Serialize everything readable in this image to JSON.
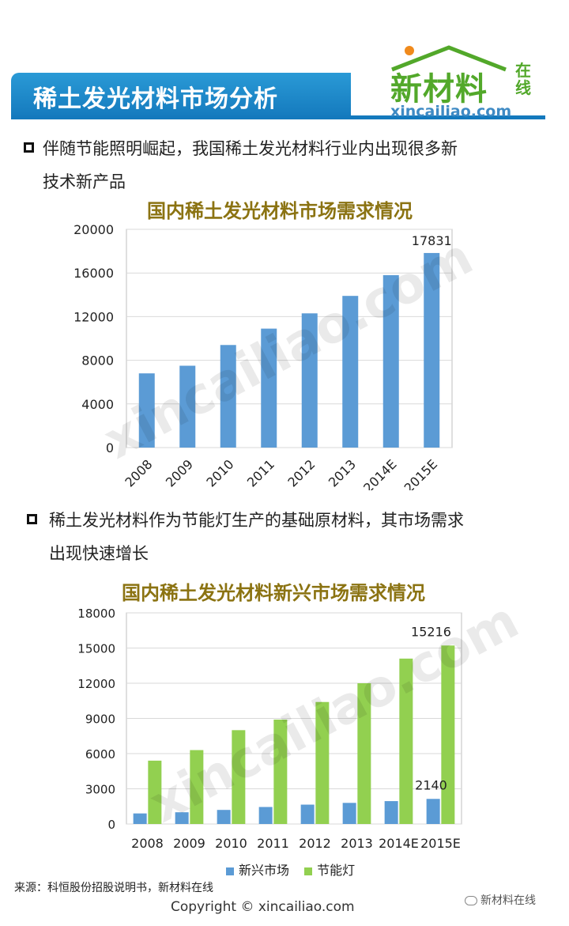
{
  "header": {
    "title": "稀土发光材料市场分析",
    "logo_cn": "新材料",
    "logo_cn_small": "在线",
    "logo_en": "xincailiao.com"
  },
  "bullets": [
    {
      "line1": "伴随节能照明崛起，我国稀土发光材料行业内出现很多新",
      "line2": "技术新产品"
    },
    {
      "line1": "稀土发光材料作为节能灯生产的基础原材料，其市场需求",
      "line2": "出现快速增长"
    }
  ],
  "watermark": "xincailiao.com",
  "colors": {
    "blue_bar": "#5b9bd5",
    "green_bar": "#92d050",
    "title_brown": "#8b7312",
    "header_blue": "#1479bd"
  },
  "chart_data": [
    {
      "type": "bar",
      "title": "国内稀土发光材料市场需求情况",
      "categories": [
        "2008",
        "2009",
        "2010",
        "2011",
        "2012",
        "2013",
        "2014E",
        "2015E"
      ],
      "values": [
        6800,
        7500,
        9400,
        10900,
        12300,
        13900,
        15800,
        17831
      ],
      "ylim": [
        0,
        20000
      ],
      "yticks": [
        "0",
        "4000",
        "8000",
        "12000",
        "16000",
        "20000"
      ],
      "data_label": "17831",
      "grid": true
    },
    {
      "type": "bar",
      "title": "国内稀土发光材料新兴市场需求情况",
      "categories": [
        "2008",
        "2009",
        "2010",
        "2011",
        "2012",
        "2013",
        "2014E",
        "2015E"
      ],
      "series": [
        {
          "name": "新兴市场",
          "values": [
            900,
            1000,
            1200,
            1450,
            1650,
            1800,
            1950,
            2140
          ]
        },
        {
          "name": "节能灯",
          "values": [
            5400,
            6300,
            8000,
            8900,
            10400,
            12000,
            14100,
            15216
          ]
        }
      ],
      "ylim": [
        0,
        18000
      ],
      "yticks": [
        "0",
        "3000",
        "6000",
        "9000",
        "12000",
        "15000",
        "18000"
      ],
      "data_labels": [
        "2140",
        "15216"
      ],
      "legend": "bottom",
      "grid": true
    }
  ],
  "footer": {
    "source": "来源：科恒股份招股说明书，新材料在线",
    "copyright": "Copyright © xincailiao.com",
    "wechat": "新材料在线"
  }
}
